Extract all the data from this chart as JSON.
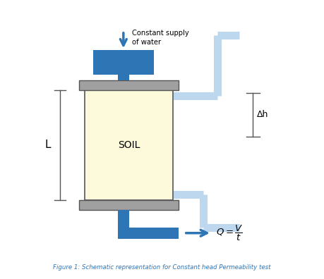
{
  "fig_width": 4.59,
  "fig_height": 3.96,
  "dpi": 100,
  "bg_color": "#ffffff",
  "blue_dark": "#2E75B6",
  "blue_light": "#BDD7EE",
  "gray_cap": "#A0A0A0",
  "soil_fill": "#FDFADC",
  "soil_edge": "#404040",
  "caption_color": "#2E75B6",
  "caption": "Figure 1: Schematic representation for Constant head Permeability test",
  "soil_label": "SOIL",
  "text_supply": "Constant supply\nof water",
  "label_L": "L",
  "label_dh": "Δh"
}
